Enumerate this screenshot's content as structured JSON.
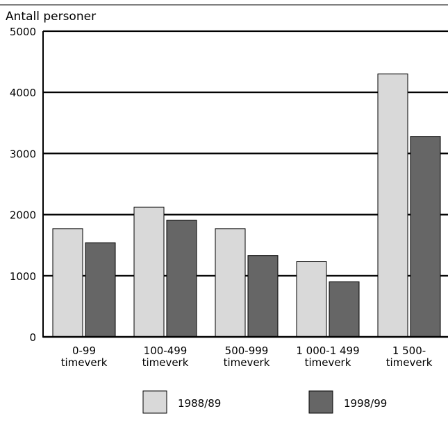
{
  "chart_data": {
    "type": "bar",
    "title": "",
    "ylabel": "Antall personer",
    "xlabel": "",
    "ylim": [
      0,
      5000
    ],
    "yticks": [
      0,
      1000,
      2000,
      3000,
      4000,
      5000
    ],
    "grid": true,
    "legend_position": "bottom",
    "categories": [
      [
        "0-99",
        "timeverk"
      ],
      [
        "100-499",
        "timeverk"
      ],
      [
        "500-999",
        "timeverk"
      ],
      [
        "1 000-1 499",
        "timeverk"
      ],
      [
        "1 500-",
        "timeverk"
      ]
    ],
    "series": [
      {
        "name": "1988/89",
        "color": "#d9d9d9",
        "values": [
          1770,
          2120,
          1770,
          1230,
          4300
        ]
      },
      {
        "name": "1998/99",
        "color": "#666666",
        "values": [
          1540,
          1910,
          1330,
          900,
          3280
        ]
      }
    ]
  }
}
